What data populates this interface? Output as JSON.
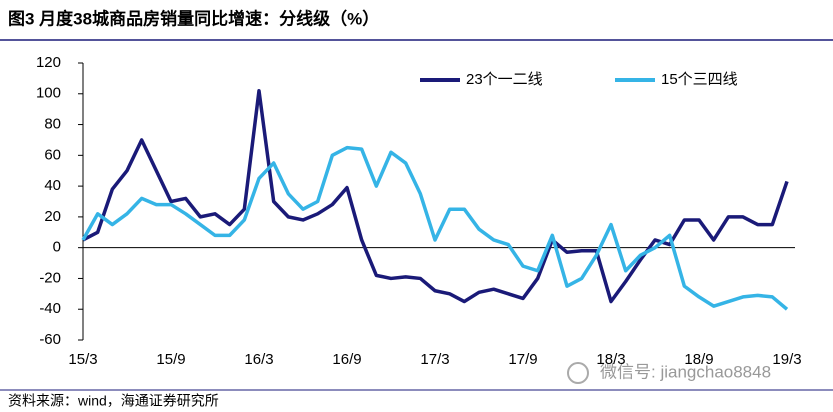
{
  "title": "图3 月度38城商品房销量同比增速：分线级（%）",
  "source": "资料来源：wind，海通证券研究所",
  "watermark": "微信号: jiangchao8848",
  "chart_data": {
    "type": "line",
    "categories": [
      "15/3",
      null,
      null,
      null,
      null,
      null,
      "15/9",
      null,
      null,
      null,
      null,
      null,
      "16/3",
      null,
      null,
      null,
      null,
      null,
      "16/9",
      null,
      null,
      null,
      null,
      null,
      "17/3",
      null,
      null,
      null,
      null,
      null,
      "17/9",
      null,
      null,
      null,
      null,
      null,
      "18/3",
      null,
      null,
      null,
      null,
      null,
      "18/9",
      null,
      null,
      null,
      null,
      null,
      "19/3"
    ],
    "series": [
      {
        "name": "23个一二线",
        "color": "#1a1a78",
        "values": [
          5,
          10,
          38,
          50,
          70,
          50,
          30,
          32,
          20,
          22,
          15,
          25,
          102,
          30,
          20,
          18,
          22,
          28,
          39,
          5,
          -18,
          -20,
          -19,
          -20,
          -28,
          -30,
          -35,
          -29,
          -27,
          -30,
          -33,
          -20,
          5,
          -3,
          -2,
          -2,
          -35,
          -22,
          -8,
          5,
          2,
          18,
          18,
          5,
          20,
          20,
          15,
          15,
          43
        ]
      },
      {
        "name": "15个三四线",
        "color": "#35b4e6",
        "values": [
          5,
          22,
          15,
          22,
          32,
          28,
          28,
          22,
          15,
          8,
          8,
          18,
          45,
          55,
          35,
          25,
          30,
          60,
          65,
          64,
          40,
          62,
          55,
          35,
          5,
          25,
          25,
          12,
          5,
          2,
          -12,
          -15,
          8,
          -25,
          -20,
          -5,
          15,
          -15,
          -5,
          0,
          8,
          -25,
          -32,
          -38,
          -35,
          -32,
          -31,
          -32,
          -40
        ]
      }
    ],
    "ylim": [
      -60,
      120
    ],
    "yticks": [
      -60,
      -40,
      -20,
      0,
      20,
      40,
      60,
      80,
      100,
      120
    ],
    "legend": "top-right"
  }
}
